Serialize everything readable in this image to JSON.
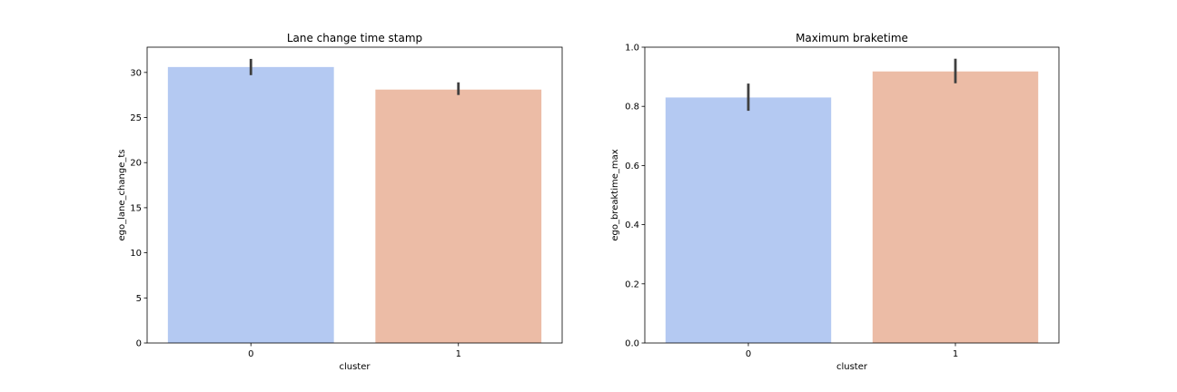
{
  "chart_data": [
    {
      "type": "bar",
      "title": "Lane change time stamp",
      "xlabel": "cluster",
      "ylabel": "ego_lane_change_ts",
      "categories": [
        "0",
        "1"
      ],
      "values": [
        30.6,
        28.1
      ],
      "error_low": [
        29.7,
        27.5
      ],
      "error_high": [
        31.5,
        28.9
      ],
      "colors": [
        "#b4c9f2",
        "#ecbca6"
      ],
      "ylim": [
        0,
        32.8
      ],
      "yticks": [
        0,
        5,
        10,
        15,
        20,
        25,
        30
      ],
      "ytick_labels": [
        "0",
        "5",
        "10",
        "15",
        "20",
        "25",
        "30"
      ],
      "grid": false,
      "legend": "none"
    },
    {
      "type": "bar",
      "title": "Maximum braketime",
      "xlabel": "cluster",
      "ylabel": "ego_breaktime_max",
      "categories": [
        "0",
        "1"
      ],
      "values": [
        0.83,
        0.918
      ],
      "error_low": [
        0.785,
        0.878
      ],
      "error_high": [
        0.877,
        0.961
      ],
      "colors": [
        "#b4c9f2",
        "#ecbca6"
      ],
      "ylim": [
        0,
        1.0
      ],
      "yticks": [
        0,
        0.2,
        0.4,
        0.6,
        0.8,
        1.0
      ],
      "ytick_labels": [
        "0.0",
        "0.2",
        "0.4",
        "0.6",
        "0.8",
        "1.0"
      ],
      "grid": false,
      "legend": "none"
    }
  ]
}
